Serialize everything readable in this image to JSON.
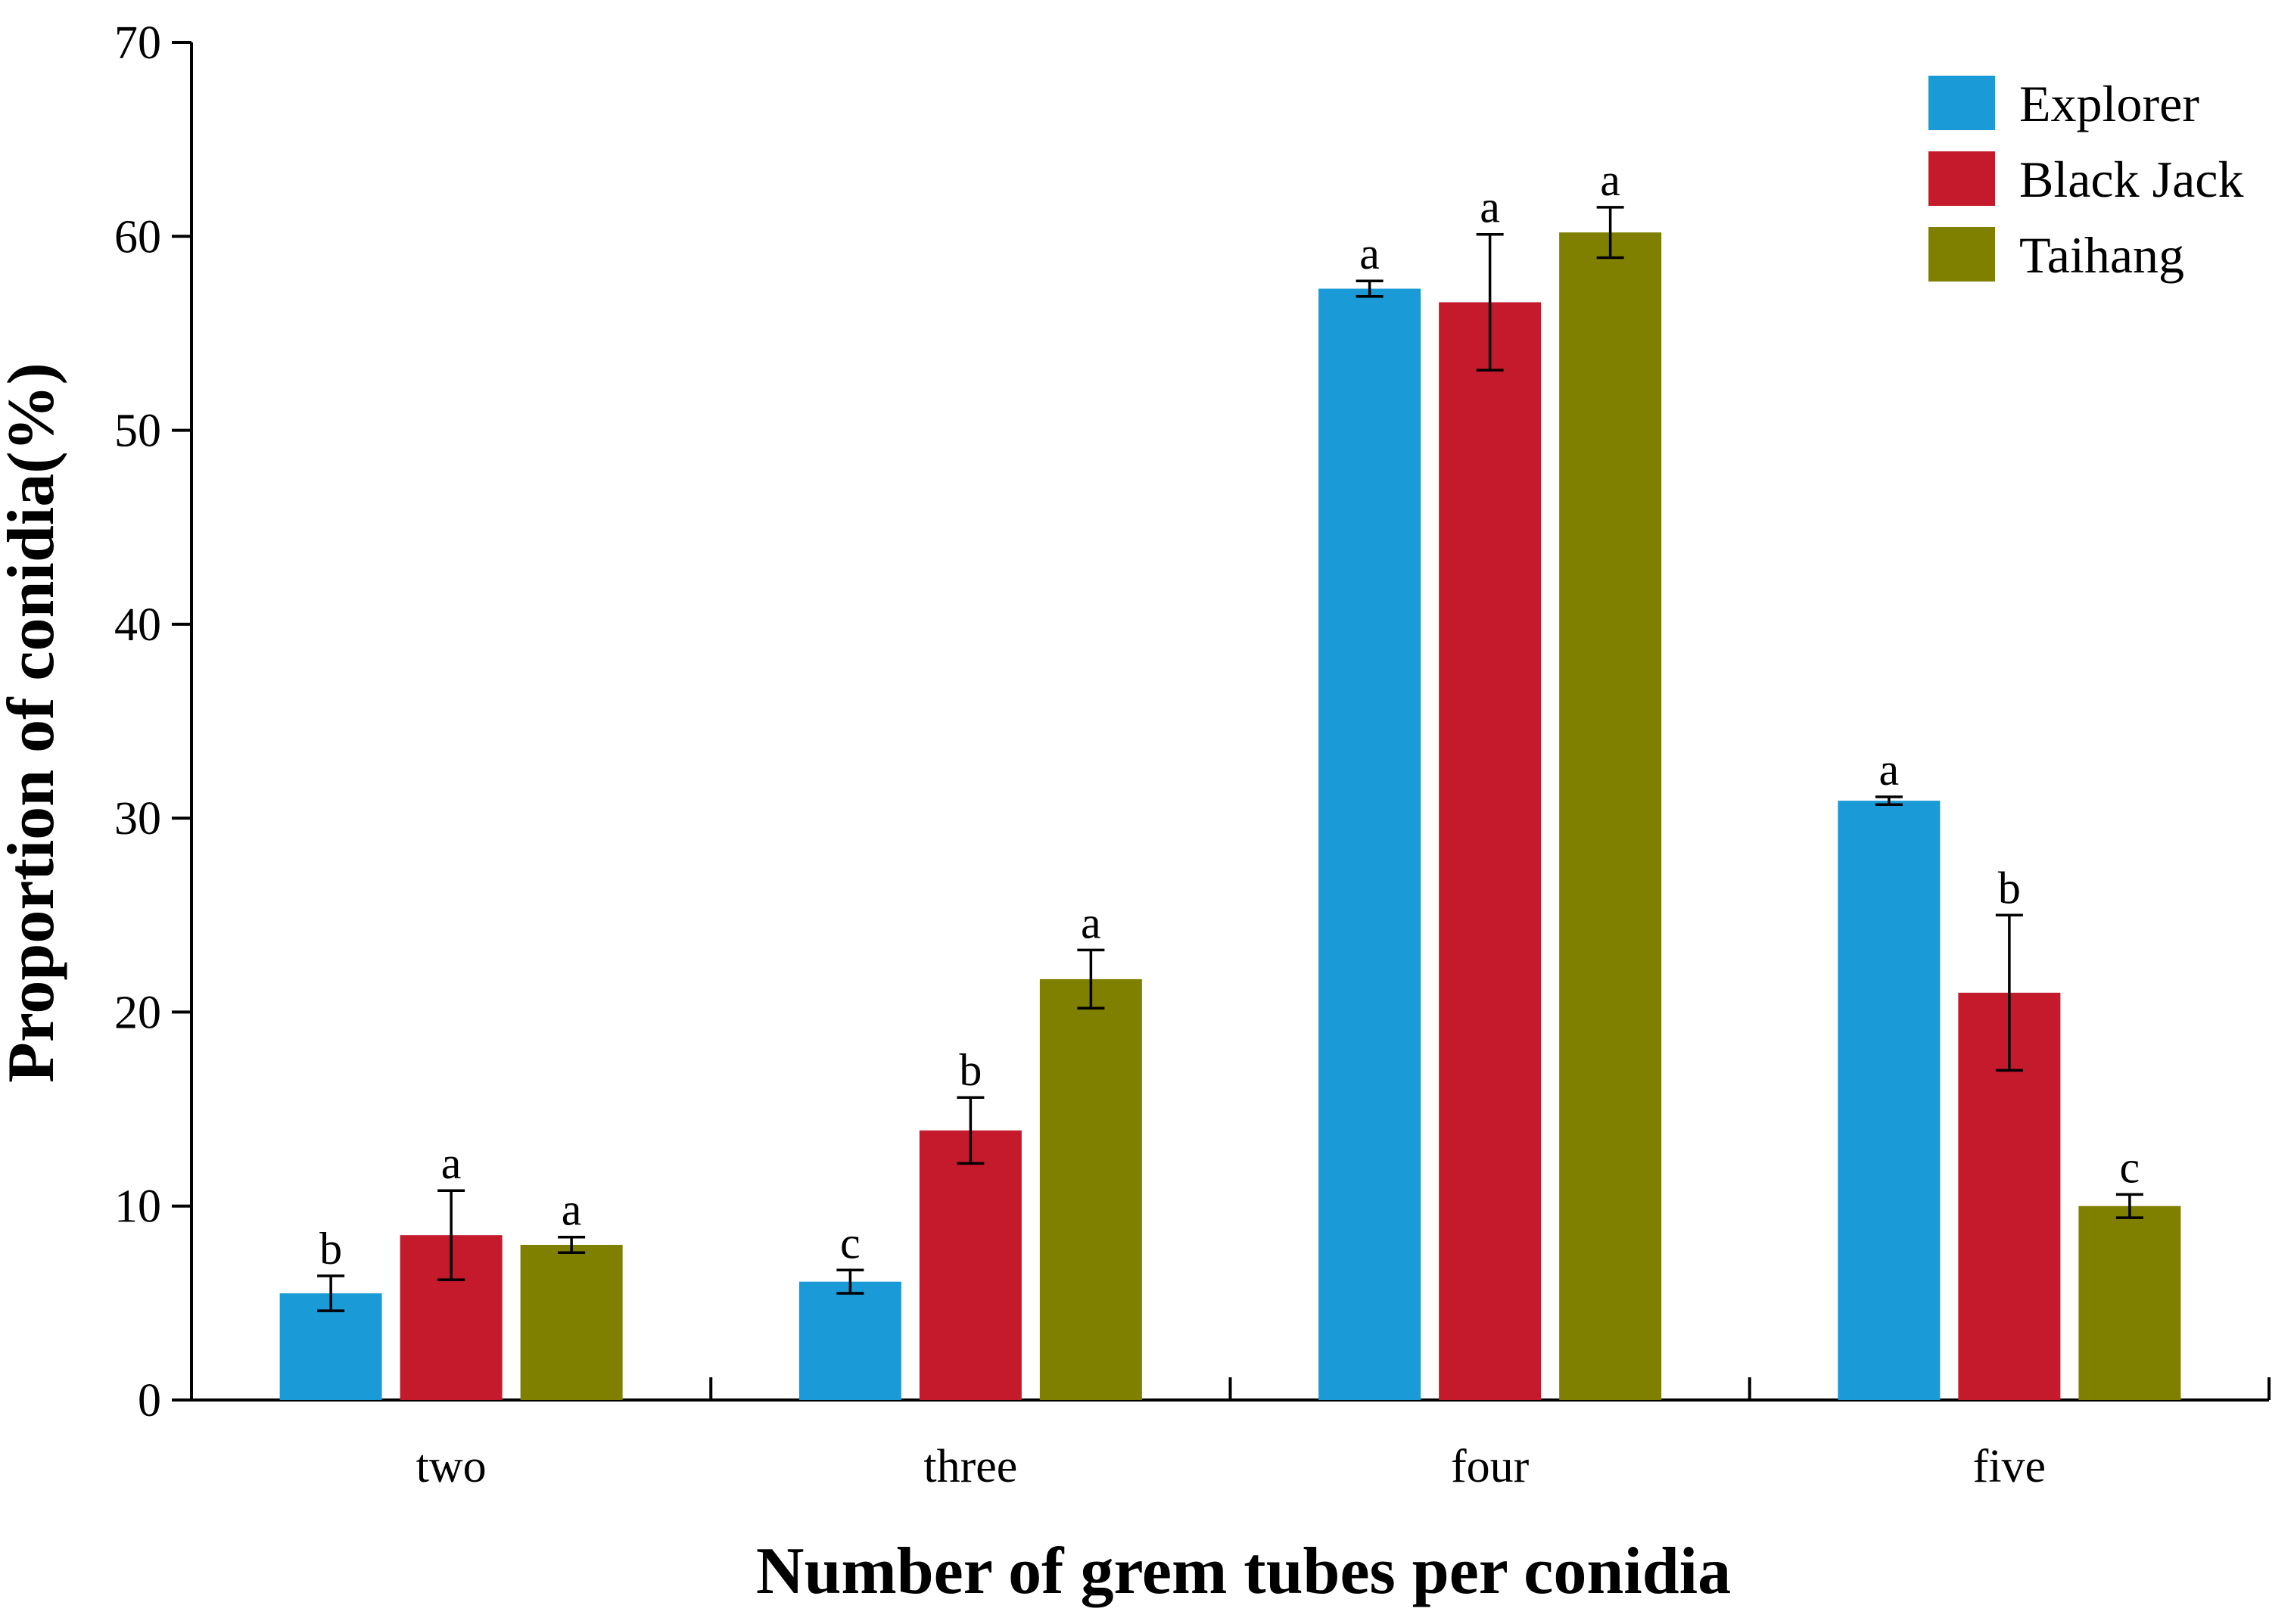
{
  "chart_data": {
    "type": "bar",
    "title": "",
    "xlabel": "Number of grem tubes per conidia",
    "ylabel": "Proportion of conidia(%)",
    "ylim": [
      0,
      70
    ],
    "yticks": [
      0,
      10,
      20,
      30,
      40,
      50,
      60,
      70
    ],
    "categories": [
      "two",
      "three",
      "four",
      "five"
    ],
    "legend_position": "top-right",
    "series": [
      {
        "name": "Explorer",
        "color": "#1a9ad6",
        "values": [
          5.5,
          6.1,
          57.3,
          30.9
        ],
        "errors": [
          0.9,
          0.6,
          0.4,
          0.2
        ],
        "letters": [
          "b",
          "c",
          "a",
          "a"
        ]
      },
      {
        "name": "Black Jack",
        "color": "#c41a2c",
        "values": [
          8.5,
          13.9,
          56.6,
          21.0
        ],
        "errors": [
          2.3,
          1.7,
          3.5,
          4.0
        ],
        "letters": [
          "a",
          "b",
          "a",
          "b"
        ]
      },
      {
        "name": "Taihang",
        "color": "#808000",
        "values": [
          8.0,
          21.7,
          60.2,
          10.0
        ],
        "errors": [
          0.4,
          1.5,
          1.3,
          0.6
        ],
        "letters": [
          "a",
          "a",
          "a",
          "c"
        ]
      }
    ]
  }
}
